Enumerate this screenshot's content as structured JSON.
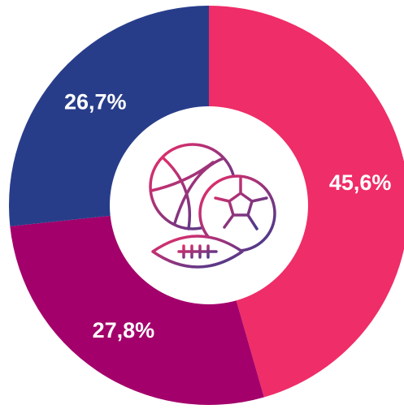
{
  "chart_data": {
    "type": "donut",
    "categories": [
      null,
      null,
      null
    ],
    "values": [
      45.6,
      27.8,
      26.7
    ],
    "value_labels": [
      "45,6%",
      "27,8%",
      "26,7%"
    ],
    "colors": [
      "#ef2d68",
      "#a3006b",
      "#283d8a"
    ]
  }
}
